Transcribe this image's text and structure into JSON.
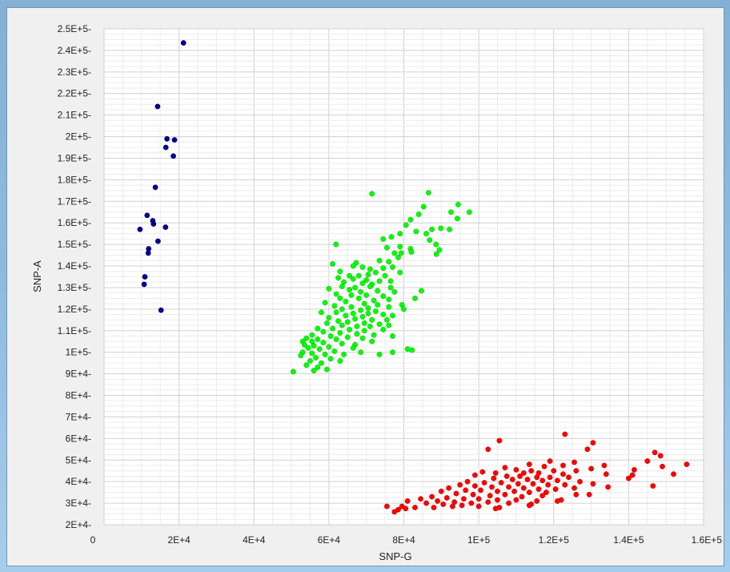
{
  "chart_data": {
    "type": "scatter",
    "title": "",
    "xlabel": "SNP-G",
    "ylabel": "SNP-A",
    "xlim": [
      0,
      160000
    ],
    "ylim": [
      20000,
      250000
    ],
    "x_ticks": [
      0,
      20000,
      40000,
      60000,
      80000,
      100000,
      120000,
      140000,
      160000
    ],
    "x_tick_labels": [
      "0",
      "2E+4",
      "4E+4",
      "6E+4",
      "8E+4",
      "1E+5",
      "1.2E+5",
      "1.4E+5",
      "1.6E+5"
    ],
    "y_ticks": [
      20000,
      30000,
      40000,
      50000,
      60000,
      70000,
      80000,
      90000,
      100000,
      110000,
      120000,
      130000,
      140000,
      150000,
      160000,
      170000,
      180000,
      190000,
      200000,
      210000,
      220000,
      230000,
      240000,
      250000
    ],
    "y_tick_labels": [
      "2E+4-",
      "3E+4-",
      "4E+4-",
      "5E+4-",
      "6E+4-",
      "7E+4-",
      "8E+4-",
      "9E+4-",
      "1E+5-",
      "1.1E+5-",
      "1.2E+5-",
      "1.3E+5-",
      "1.4E+5-",
      "1.5E+5-",
      "1.6E+5-",
      "1.7E+5-",
      "1.8E+5-",
      "1.9E+5-",
      "2E+5-",
      "2.1E+5-",
      "2.2E+5-",
      "2.3E+5-",
      "2.4E+5-",
      "2.5E+5-"
    ],
    "grid": true,
    "series": [
      {
        "color": "#00008b",
        "points": [
          [
            21200,
            243500
          ],
          [
            14300,
            214000
          ],
          [
            16800,
            199000
          ],
          [
            18800,
            198500
          ],
          [
            16500,
            195000
          ],
          [
            18500,
            191000
          ],
          [
            13700,
            176500
          ],
          [
            11500,
            163500
          ],
          [
            13000,
            161000
          ],
          [
            9600,
            157000
          ],
          [
            13200,
            159500
          ],
          [
            16400,
            158000
          ],
          [
            14400,
            151500
          ],
          [
            11900,
            148000
          ],
          [
            11800,
            146000
          ],
          [
            10900,
            135000
          ],
          [
            10700,
            131500
          ],
          [
            15200,
            119500
          ]
        ]
      },
      {
        "color": "#00ff00",
        "points": [
          [
            71500,
            173500
          ],
          [
            86600,
            174000
          ],
          [
            94500,
            168500
          ],
          [
            97500,
            165000
          ],
          [
            85300,
            167500
          ],
          [
            84000,
            164000
          ],
          [
            92600,
            165000
          ],
          [
            94300,
            162000
          ],
          [
            81800,
            161500
          ],
          [
            80600,
            159000
          ],
          [
            87500,
            157000
          ],
          [
            89900,
            157500
          ],
          [
            92200,
            157000
          ],
          [
            79000,
            155000
          ],
          [
            83300,
            156000
          ],
          [
            86000,
            155000
          ],
          [
            86900,
            152000
          ],
          [
            76700,
            153500
          ],
          [
            74500,
            152500
          ],
          [
            75500,
            148500
          ],
          [
            79000,
            149000
          ],
          [
            88600,
            150000
          ],
          [
            61900,
            150000
          ],
          [
            81800,
            148000
          ],
          [
            77500,
            146000
          ],
          [
            79300,
            146000
          ],
          [
            82000,
            146500
          ],
          [
            89500,
            147500
          ],
          [
            78500,
            144000
          ],
          [
            73500,
            142500
          ],
          [
            76000,
            142000
          ],
          [
            88700,
            145500
          ],
          [
            67300,
            141500
          ],
          [
            61000,
            141000
          ],
          [
            66500,
            140000
          ],
          [
            69000,
            139500
          ],
          [
            74500,
            139000
          ],
          [
            77000,
            139500
          ],
          [
            71000,
            138500
          ],
          [
            63000,
            137500
          ],
          [
            72500,
            137000
          ],
          [
            79000,
            137000
          ],
          [
            65500,
            135500
          ],
          [
            68000,
            135500
          ],
          [
            70500,
            136000
          ],
          [
            75000,
            135500
          ],
          [
            62500,
            134500
          ],
          [
            66500,
            134000
          ],
          [
            70000,
            133500
          ],
          [
            73500,
            133000
          ],
          [
            76500,
            133000
          ],
          [
            64000,
            132500
          ],
          [
            69000,
            132000
          ],
          [
            71500,
            131500
          ],
          [
            63500,
            130500
          ],
          [
            67000,
            130000
          ],
          [
            71000,
            130500
          ],
          [
            76500,
            130000
          ],
          [
            60000,
            129500
          ],
          [
            65500,
            129000
          ],
          [
            68500,
            128000
          ],
          [
            73000,
            128500
          ],
          [
            77500,
            128000
          ],
          [
            84700,
            128500
          ],
          [
            62000,
            127000
          ],
          [
            66000,
            126500
          ],
          [
            70000,
            126500
          ],
          [
            74500,
            126000
          ],
          [
            63000,
            125000
          ],
          [
            68000,
            125000
          ],
          [
            72000,
            124000
          ],
          [
            76000,
            124500
          ],
          [
            83000,
            125000
          ],
          [
            59000,
            123000
          ],
          [
            64500,
            123500
          ],
          [
            69500,
            122500
          ],
          [
            73000,
            122000
          ],
          [
            79500,
            122000
          ],
          [
            61500,
            121500
          ],
          [
            66000,
            121000
          ],
          [
            70500,
            120500
          ],
          [
            76000,
            121000
          ],
          [
            63500,
            120000
          ],
          [
            68500,
            119500
          ],
          [
            72500,
            119000
          ],
          [
            80000,
            120000
          ],
          [
            58000,
            118500
          ],
          [
            62000,
            118500
          ],
          [
            66500,
            118000
          ],
          [
            70500,
            118000
          ],
          [
            74500,
            117500
          ],
          [
            64500,
            117000
          ],
          [
            69000,
            116500
          ],
          [
            77000,
            117000
          ],
          [
            60000,
            116000
          ],
          [
            67000,
            115500
          ],
          [
            71500,
            115000
          ],
          [
            75500,
            115000
          ],
          [
            62500,
            114500
          ],
          [
            65000,
            114000
          ],
          [
            69500,
            113500
          ],
          [
            73500,
            113000
          ],
          [
            59500,
            113500
          ],
          [
            63500,
            112500
          ],
          [
            67500,
            112000
          ],
          [
            71000,
            112000
          ],
          [
            76000,
            112500
          ],
          [
            57000,
            111000
          ],
          [
            61000,
            111000
          ],
          [
            65500,
            110500
          ],
          [
            69500,
            110000
          ],
          [
            74500,
            110500
          ],
          [
            58500,
            109500
          ],
          [
            63000,
            109000
          ],
          [
            67500,
            108500
          ],
          [
            72000,
            108000
          ],
          [
            55500,
            108000
          ],
          [
            60500,
            107500
          ],
          [
            65000,
            107000
          ],
          [
            54000,
            106500
          ],
          [
            57000,
            106000
          ],
          [
            62000,
            106000
          ],
          [
            69000,
            106500
          ],
          [
            77000,
            107500
          ],
          [
            53000,
            105000
          ],
          [
            55500,
            105000
          ],
          [
            58500,
            104500
          ],
          [
            63500,
            104000
          ],
          [
            67000,
            103500
          ],
          [
            71500,
            105000
          ],
          [
            53500,
            103500
          ],
          [
            56000,
            103000
          ],
          [
            60000,
            102500
          ],
          [
            66500,
            102000
          ],
          [
            54500,
            102000
          ],
          [
            57500,
            101500
          ],
          [
            61500,
            100500
          ],
          [
            53000,
            100000
          ],
          [
            55500,
            99500
          ],
          [
            59000,
            99000
          ],
          [
            64000,
            99000
          ],
          [
            68500,
            100000
          ],
          [
            52500,
            98500
          ],
          [
            56500,
            97500
          ],
          [
            60500,
            97000
          ],
          [
            63000,
            96000
          ],
          [
            55000,
            96000
          ],
          [
            58000,
            95000
          ],
          [
            54000,
            94000
          ],
          [
            57000,
            93000
          ],
          [
            50500,
            91000
          ],
          [
            56000,
            91500
          ],
          [
            59500,
            92000
          ],
          [
            81000,
            101500
          ],
          [
            82200,
            101000
          ],
          [
            77000,
            100000
          ],
          [
            73500,
            99000
          ]
        ]
      },
      {
        "color": "#ff0000",
        "points": [
          [
            123000,
            62000
          ],
          [
            105500,
            59000
          ],
          [
            130500,
            58000
          ],
          [
            102500,
            55000
          ],
          [
            129000,
            55000
          ],
          [
            147000,
            53500
          ],
          [
            148500,
            52000
          ],
          [
            145000,
            49500
          ],
          [
            119000,
            49500
          ],
          [
            125500,
            49000
          ],
          [
            155500,
            48000
          ],
          [
            113500,
            48000
          ],
          [
            117500,
            47000
          ],
          [
            122500,
            47500
          ],
          [
            133500,
            47500
          ],
          [
            149000,
            47000
          ],
          [
            107000,
            46500
          ],
          [
            130000,
            46000
          ],
          [
            141500,
            45500
          ],
          [
            110000,
            45500
          ],
          [
            114000,
            45000
          ],
          [
            120000,
            45000
          ],
          [
            126000,
            45000
          ],
          [
            101000,
            44500
          ],
          [
            104500,
            44000
          ],
          [
            112000,
            44000
          ],
          [
            116000,
            44000
          ],
          [
            122500,
            43500
          ],
          [
            134000,
            43500
          ],
          [
            152000,
            43500
          ],
          [
            141000,
            43000
          ],
          [
            99000,
            43000
          ],
          [
            107500,
            42500
          ],
          [
            111000,
            42500
          ],
          [
            115500,
            42000
          ],
          [
            119000,
            42000
          ],
          [
            124000,
            42000
          ],
          [
            104000,
            41500
          ],
          [
            109000,
            41000
          ],
          [
            113000,
            41000
          ],
          [
            117000,
            40500
          ],
          [
            121000,
            40500
          ],
          [
            127000,
            40000
          ],
          [
            140000,
            41500
          ],
          [
            97000,
            40000
          ],
          [
            101500,
            39500
          ],
          [
            106000,
            39500
          ],
          [
            110500,
            39000
          ],
          [
            114500,
            39000
          ],
          [
            118500,
            38500
          ],
          [
            123000,
            38500
          ],
          [
            130500,
            39000
          ],
          [
            146500,
            38000
          ],
          [
            134500,
            37500
          ],
          [
            95000,
            38500
          ],
          [
            99000,
            38000
          ],
          [
            103500,
            37500
          ],
          [
            108000,
            37500
          ],
          [
            112000,
            37000
          ],
          [
            116000,
            36500
          ],
          [
            120500,
            36500
          ],
          [
            125500,
            37000
          ],
          [
            92000,
            37000
          ],
          [
            96500,
            36000
          ],
          [
            100500,
            36000
          ],
          [
            105000,
            35500
          ],
          [
            109500,
            35500
          ],
          [
            113500,
            35000
          ],
          [
            118000,
            35000
          ],
          [
            129500,
            34000
          ],
          [
            90000,
            35500
          ],
          [
            94000,
            34500
          ],
          [
            98500,
            34000
          ],
          [
            103000,
            33500
          ],
          [
            107000,
            34000
          ],
          [
            111500,
            33000
          ],
          [
            117000,
            33500
          ],
          [
            126000,
            34000
          ],
          [
            87500,
            33000
          ],
          [
            91500,
            32500
          ],
          [
            96000,
            32000
          ],
          [
            100000,
            32000
          ],
          [
            105000,
            31500
          ],
          [
            110000,
            31500
          ],
          [
            115500,
            31000
          ],
          [
            122000,
            31500
          ],
          [
            84500,
            32000
          ],
          [
            89000,
            31000
          ],
          [
            93500,
            30500
          ],
          [
            98000,
            30000
          ],
          [
            102500,
            30500
          ],
          [
            108000,
            30000
          ],
          [
            114000,
            29500
          ],
          [
            121000,
            31000
          ],
          [
            81000,
            31000
          ],
          [
            86000,
            30000
          ],
          [
            90500,
            29500
          ],
          [
            95500,
            29000
          ],
          [
            100000,
            28500
          ],
          [
            105500,
            28000
          ],
          [
            113500,
            29000
          ],
          [
            75500,
            28500
          ],
          [
            79500,
            28500
          ],
          [
            83000,
            28000
          ],
          [
            88000,
            28000
          ],
          [
            93000,
            28500
          ],
          [
            78500,
            27000
          ],
          [
            80500,
            27500
          ],
          [
            77500,
            26000
          ],
          [
            104500,
            27500
          ]
        ]
      }
    ]
  }
}
